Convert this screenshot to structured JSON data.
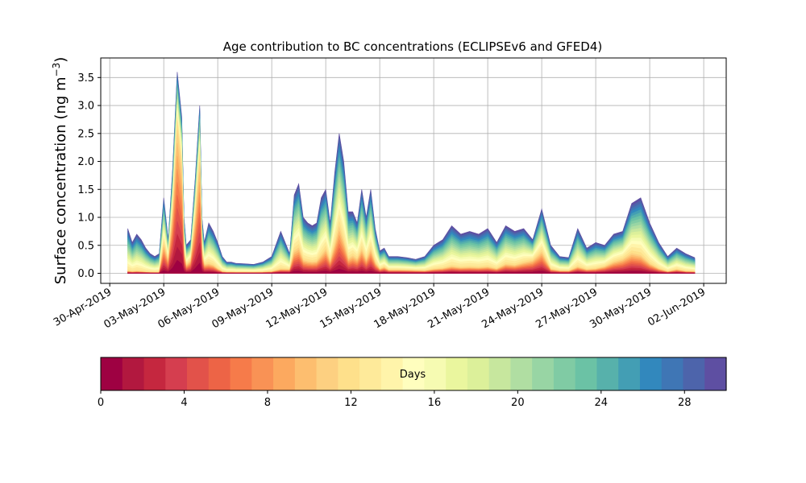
{
  "chart_data": {
    "type": "area",
    "title": "Age contribution to BC concentrations (ECLIPSEv6 and GFED4)",
    "ylabel": "Surface concentration (ng m",
    "ylabel_sup": "−3",
    "ylabel_close": ")",
    "xlabel": "",
    "grid": true,
    "ylim": [
      -0.18,
      3.85
    ],
    "yticks": [
      0.0,
      0.5,
      1.0,
      1.5,
      2.0,
      2.5,
      3.0,
      3.5
    ],
    "ytick_labels": [
      "0.0",
      "0.5",
      "1.0",
      "1.5",
      "2.0",
      "2.5",
      "3.0",
      "3.5"
    ],
    "xlim": [
      "2019-04-29T12:00",
      "2019-06-03T06:00"
    ],
    "xticks": [
      "2019-04-30",
      "2019-05-03",
      "2019-05-06",
      "2019-05-09",
      "2019-05-12",
      "2019-05-15",
      "2019-05-18",
      "2019-05-21",
      "2019-05-24",
      "2019-05-27",
      "2019-05-30",
      "2019-06-02"
    ],
    "xtick_labels": [
      "30-Apr-2019",
      "03-May-2019",
      "06-May-2019",
      "09-May-2019",
      "12-May-2019",
      "15-May-2019",
      "18-May-2019",
      "21-May-2019",
      "24-May-2019",
      "27-May-2019",
      "30-May-2019",
      "02-Jun-2019"
    ],
    "series_description": "stacked contributions by age in days (0-30), bottom = youngest",
    "total": {
      "dates": [
        "2019-05-01T00:00",
        "2019-05-01T06:00",
        "2019-05-01T12:00",
        "2019-05-01T18:00",
        "2019-05-02T00:00",
        "2019-05-02T06:00",
        "2019-05-02T12:00",
        "2019-05-02T18:00",
        "2019-05-03T00:00",
        "2019-05-03T06:00",
        "2019-05-03T12:00",
        "2019-05-03T18:00",
        "2019-05-04T00:00",
        "2019-05-04T03:00",
        "2019-05-04T06:00",
        "2019-05-04T12:00",
        "2019-05-04T18:00",
        "2019-05-05T00:00",
        "2019-05-05T03:00",
        "2019-05-05T06:00",
        "2019-05-05T12:00",
        "2019-05-05T18:00",
        "2019-05-06T00:00",
        "2019-05-06T06:00",
        "2019-05-06T12:00",
        "2019-05-06T18:00",
        "2019-05-07T00:00",
        "2019-05-07T12:00",
        "2019-05-08T00:00",
        "2019-05-08T12:00",
        "2019-05-09T00:00",
        "2019-05-09T12:00",
        "2019-05-10T00:00",
        "2019-05-10T06:00",
        "2019-05-10T12:00",
        "2019-05-10T18:00",
        "2019-05-11T00:00",
        "2019-05-11T06:00",
        "2019-05-11T12:00",
        "2019-05-11T18:00",
        "2019-05-12T00:00",
        "2019-05-12T06:00",
        "2019-05-12T12:00",
        "2019-05-12T18:00",
        "2019-05-13T00:00",
        "2019-05-13T06:00",
        "2019-05-13T12:00",
        "2019-05-13T18:00",
        "2019-05-14T00:00",
        "2019-05-14T06:00",
        "2019-05-14T12:00",
        "2019-05-14T18:00",
        "2019-05-15T00:00",
        "2019-05-15T06:00",
        "2019-05-15T12:00",
        "2019-05-15T18:00",
        "2019-05-16T00:00",
        "2019-05-16T12:00",
        "2019-05-17T00:00",
        "2019-05-17T12:00",
        "2019-05-18T00:00",
        "2019-05-18T12:00",
        "2019-05-19T00:00",
        "2019-05-19T12:00",
        "2019-05-20T00:00",
        "2019-05-20T12:00",
        "2019-05-21T00:00",
        "2019-05-21T12:00",
        "2019-05-22T00:00",
        "2019-05-22T12:00",
        "2019-05-23T00:00",
        "2019-05-23T12:00",
        "2019-05-24T00:00",
        "2019-05-24T12:00",
        "2019-05-25T00:00",
        "2019-05-25T12:00",
        "2019-05-26T00:00",
        "2019-05-26T12:00",
        "2019-05-27T00:00",
        "2019-05-27T12:00",
        "2019-05-28T00:00",
        "2019-05-28T12:00",
        "2019-05-29T00:00",
        "2019-05-29T12:00",
        "2019-05-30T00:00",
        "2019-05-30T12:00",
        "2019-05-31T00:00",
        "2019-05-31T12:00",
        "2019-06-01T00:00",
        "2019-06-01T12:00"
      ],
      "values": [
        0.8,
        0.55,
        0.7,
        0.6,
        0.45,
        0.35,
        0.3,
        0.35,
        1.35,
        0.6,
        1.9,
        3.6,
        2.8,
        1.0,
        0.5,
        0.6,
        1.7,
        3.0,
        1.0,
        0.55,
        0.9,
        0.75,
        0.55,
        0.3,
        0.2,
        0.2,
        0.18,
        0.17,
        0.16,
        0.2,
        0.3,
        0.75,
        0.35,
        1.4,
        1.6,
        1.0,
        0.9,
        0.85,
        0.9,
        1.35,
        1.5,
        0.9,
        1.8,
        2.5,
        2.0,
        1.1,
        1.1,
        0.9,
        1.5,
        1.0,
        1.5,
        0.8,
        0.4,
        0.45,
        0.3,
        0.3,
        0.3,
        0.28,
        0.25,
        0.3,
        0.5,
        0.6,
        0.85,
        0.7,
        0.75,
        0.7,
        0.8,
        0.55,
        0.85,
        0.75,
        0.8,
        0.6,
        1.15,
        0.5,
        0.3,
        0.28,
        0.8,
        0.45,
        0.55,
        0.5,
        0.7,
        0.75,
        1.25,
        1.35,
        0.9,
        0.55,
        0.3,
        0.45,
        0.35,
        0.28
      ],
      "young_fraction": [
        0.05,
        0.05,
        0.05,
        0.05,
        0.05,
        0.05,
        0.05,
        0.05,
        0.4,
        0.4,
        0.6,
        0.75,
        0.7,
        0.4,
        0.3,
        0.4,
        0.6,
        0.7,
        0.4,
        0.3,
        0.2,
        0.2,
        0.15,
        0.1,
        0.1,
        0.1,
        0.1,
        0.1,
        0.1,
        0.1,
        0.1,
        0.1,
        0.2,
        0.3,
        0.3,
        0.25,
        0.25,
        0.25,
        0.25,
        0.25,
        0.3,
        0.25,
        0.3,
        0.35,
        0.3,
        0.25,
        0.3,
        0.3,
        0.3,
        0.25,
        0.3,
        0.25,
        0.2,
        0.25,
        0.2,
        0.2,
        0.2,
        0.2,
        0.2,
        0.15,
        0.15,
        0.15,
        0.15,
        0.15,
        0.15,
        0.15,
        0.15,
        0.15,
        0.2,
        0.2,
        0.25,
        0.4,
        0.35,
        0.15,
        0.15,
        0.15,
        0.15,
        0.15,
        0.15,
        0.25,
        0.3,
        0.35,
        0.3,
        0.25,
        0.2,
        0.15,
        0.1,
        0.15,
        0.1,
        0.1
      ]
    },
    "colorbar": {
      "label": "Days",
      "min": 0,
      "max": 30,
      "ticks": [
        0,
        4,
        8,
        12,
        16,
        20,
        24,
        28
      ],
      "tick_labels": [
        "0",
        "4",
        "8",
        "12",
        "16",
        "20",
        "24",
        "28"
      ],
      "colormap": "Spectral",
      "colors": [
        "#9e0142",
        "#b2183f",
        "#c5273f",
        "#d53e4f",
        "#e2524a",
        "#ed6446",
        "#f67b4a",
        "#f99255",
        "#fca95f",
        "#fdbe6f",
        "#fdd081",
        "#fee08b",
        "#feea9a",
        "#fff4aa",
        "#fffebe",
        "#f6fbb2",
        "#eaf69e",
        "#dcf09a",
        "#c7e79e",
        "#b0dea2",
        "#98d5a4",
        "#80cba4",
        "#6bc2a5",
        "#57b1ab",
        "#439eb4",
        "#3288bd",
        "#3f76b5",
        "#4d64ab",
        "#5e4fa2"
      ]
    }
  }
}
